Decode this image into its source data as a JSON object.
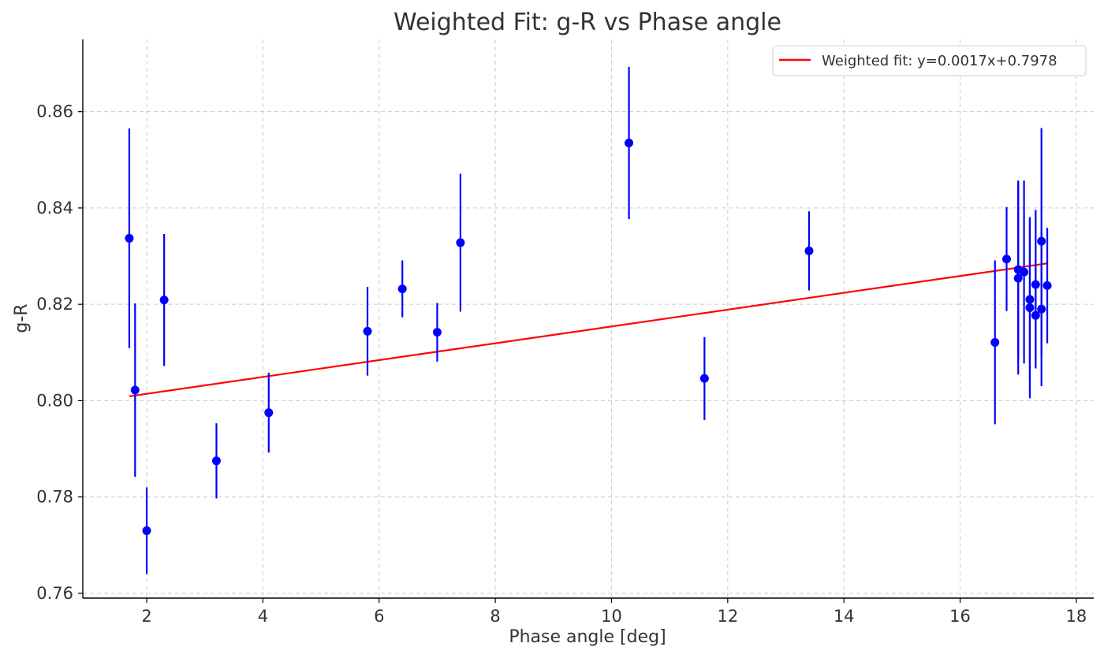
{
  "chart_data": {
    "type": "scatter",
    "title": "Weighted Fit: g-R vs Phase angle",
    "xlabel": "Phase angle [deg]",
    "ylabel": "g-R",
    "xlim": [
      0.9,
      18.3
    ],
    "ylim": [
      0.759,
      0.875
    ],
    "xticks": [
      2,
      4,
      6,
      8,
      10,
      12,
      14,
      16,
      18
    ],
    "yticks": [
      0.76,
      0.78,
      0.8,
      0.82,
      0.84,
      0.86
    ],
    "xtick_labels": [
      "2",
      "4",
      "6",
      "8",
      "10",
      "12",
      "14",
      "16",
      "18"
    ],
    "ytick_labels": [
      "0.76",
      "0.78",
      "0.80",
      "0.82",
      "0.84",
      "0.86"
    ],
    "grid": true,
    "legend_position": "top-right",
    "series": [
      {
        "kind": "errorbar",
        "color": "#0000ff",
        "points": [
          {
            "x": 1.7,
            "y": 0.8337,
            "err": 0.0228
          },
          {
            "x": 1.8,
            "y": 0.8022,
            "err": 0.018
          },
          {
            "x": 2.0,
            "y": 0.773,
            "err": 0.009
          },
          {
            "x": 2.3,
            "y": 0.8209,
            "err": 0.0137
          },
          {
            "x": 3.2,
            "y": 0.7875,
            "err": 0.0078
          },
          {
            "x": 4.1,
            "y": 0.7975,
            "err": 0.0083
          },
          {
            "x": 5.8,
            "y": 0.8144,
            "err": 0.0092
          },
          {
            "x": 6.4,
            "y": 0.8232,
            "err": 0.0059
          },
          {
            "x": 7.0,
            "y": 0.8142,
            "err": 0.0061
          },
          {
            "x": 7.4,
            "y": 0.8328,
            "err": 0.0143
          },
          {
            "x": 10.3,
            "y": 0.8535,
            "err": 0.0158
          },
          {
            "x": 11.6,
            "y": 0.8046,
            "err": 0.0086
          },
          {
            "x": 13.4,
            "y": 0.8311,
            "err": 0.0082
          },
          {
            "x": 16.6,
            "y": 0.8121,
            "err": 0.017
          },
          {
            "x": 16.8,
            "y": 0.8294,
            "err": 0.0108
          },
          {
            "x": 17.0,
            "y": 0.8272,
            "err": 0.0185
          },
          {
            "x": 17.0,
            "y": 0.8254,
            "err": 0.02
          },
          {
            "x": 17.1,
            "y": 0.8267,
            "err": 0.019
          },
          {
            "x": 17.2,
            "y": 0.821,
            "err": 0.017
          },
          {
            "x": 17.2,
            "y": 0.8193,
            "err": 0.0188
          },
          {
            "x": 17.3,
            "y": 0.8241,
            "err": 0.0155
          },
          {
            "x": 17.3,
            "y": 0.8177,
            "err": 0.011
          },
          {
            "x": 17.4,
            "y": 0.8331,
            "err": 0.0235
          },
          {
            "x": 17.4,
            "y": 0.819,
            "err": 0.016
          },
          {
            "x": 17.5,
            "y": 0.8239,
            "err": 0.012
          }
        ]
      },
      {
        "kind": "line",
        "name": "Weighted fit: y=0.0017x+0.7978",
        "color": "#ff0000",
        "x": [
          1.7,
          17.5
        ],
        "y": [
          0.8009,
          0.8285
        ]
      }
    ]
  }
}
